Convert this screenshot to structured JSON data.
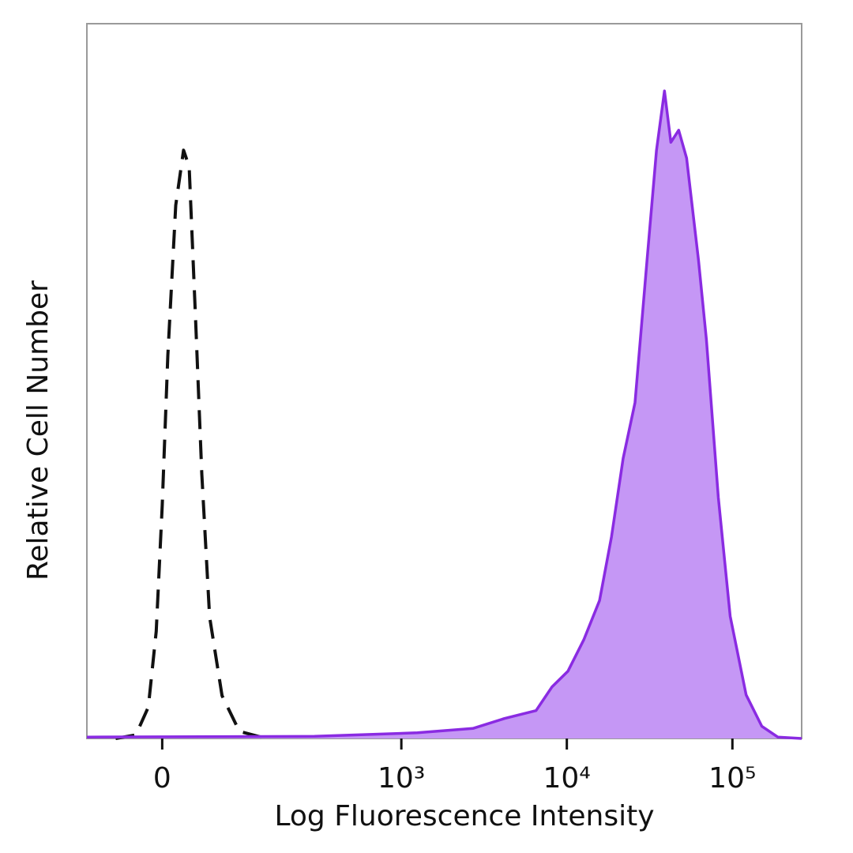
{
  "chart_data": {
    "type": "area",
    "xlabel": "Log Fluorescence Intensity",
    "ylabel": "Relative Cell Number",
    "x_scale": "biexponential",
    "xlim": [
      -90,
      262000
    ],
    "ylim": [
      0,
      100
    ],
    "xticks": [
      0,
      {
        "value": 1000,
        "label": "10³"
      },
      {
        "value": 10000,
        "label": "10⁴"
      },
      {
        "value": 100000,
        "label": "10⁵"
      }
    ],
    "series": [
      {
        "color": "#111111",
        "line_style": "dashed",
        "x": [
          -50,
          -27,
          -14,
          -6,
          0,
          5.6,
          13.6,
          21.7,
          27.6,
          34.5,
          41.7,
          51,
          67,
          93,
          145
        ],
        "values": [
          0,
          0.5,
          4.4,
          15,
          32.6,
          53.6,
          74.6,
          82.3,
          80,
          59,
          37,
          17,
          6,
          1,
          0
        ]
      },
      {
        "color": "#8a2be2",
        "fill": "#c597f5",
        "x": [
          -90,
          295,
          1249,
          2707,
          4200,
          6520,
          8130,
          10150,
          12660,
          15770,
          18600,
          21900,
          25800,
          30500,
          34800,
          38900,
          42500,
          47400,
          52900,
          62400,
          69700,
          82200,
          97000,
          121000,
          150700,
          188000,
          262000
        ],
        "values": [
          0.2,
          0.3,
          0.8,
          1.4,
          2.8,
          3.9,
          7.2,
          9.4,
          13.8,
          19.3,
          28.2,
          39.2,
          47,
          66.9,
          82.3,
          90.6,
          83.4,
          85.1,
          81.2,
          66.9,
          55.8,
          33.7,
          17.1,
          6.1,
          1.7,
          0.2,
          0
        ]
      }
    ]
  }
}
